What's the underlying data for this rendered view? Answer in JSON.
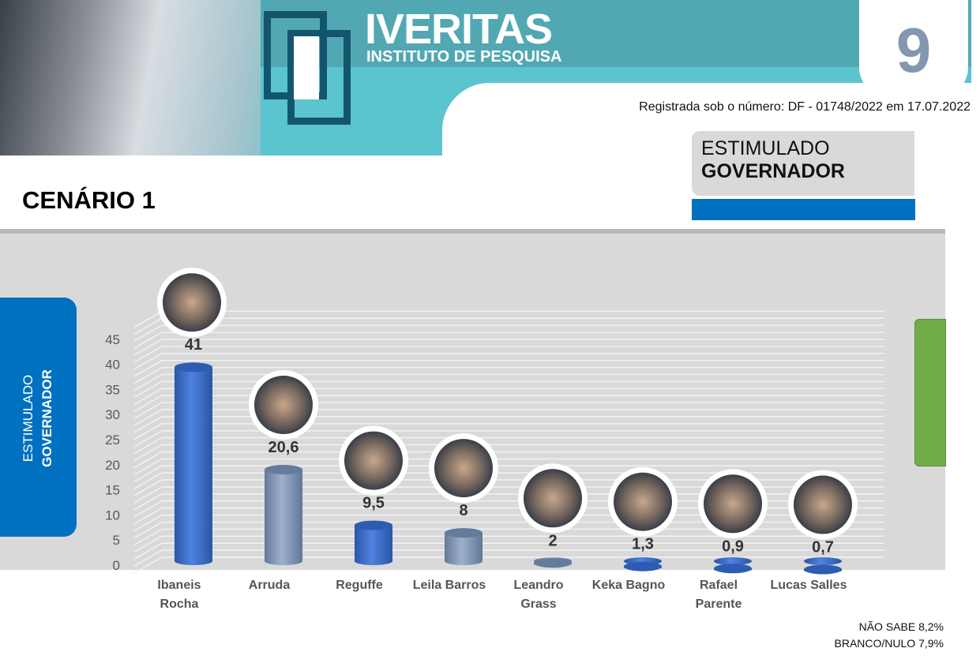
{
  "header": {
    "brand": "IVERITAS",
    "brand_sub": "INSTITUTO DE PESQUISA",
    "page_number": "9",
    "registration": "Registrada sob o número: DF - 01748/2022 em 17.07.2022"
  },
  "tag": {
    "line1": "ESTIMULADO",
    "line2": "GOVERNADOR"
  },
  "title": "CENÁRIO 1",
  "side_tab": {
    "line1": "ESTIMULADO",
    "line2": "GOVERNADOR"
  },
  "footer": {
    "nao_sabe": "NÃO SABE 8,2%",
    "branco_nulo": "BRANCO/NULO 7,9%"
  },
  "colors": {
    "blue": "#3d6fd1",
    "gray": "#7f95b6",
    "accent": "#0070c0",
    "green": "#70ad47"
  },
  "chart_data": {
    "type": "bar",
    "categories": [
      [
        "Ibaneis",
        "Rocha"
      ],
      [
        "Arruda"
      ],
      [
        "Reguffe"
      ],
      [
        "Leila Barros"
      ],
      [
        "Leandro",
        "Grass"
      ],
      [
        "Keka Bagno"
      ],
      [
        "Rafael",
        "Parente"
      ],
      [
        "Lucas Salles"
      ]
    ],
    "values": [
      41,
      20.6,
      9.5,
      8,
      2,
      1.3,
      0.9,
      0.7
    ],
    "value_labels": [
      "41",
      "20,6",
      "9,5",
      "8",
      "2",
      "1,3",
      "0,9",
      "0,7"
    ],
    "bar_colors": [
      "blue",
      "gray",
      "blue",
      "gray",
      "gray",
      "blue",
      "blue",
      "blue"
    ],
    "yticks": [
      "0",
      "5",
      "10",
      "15",
      "20",
      "25",
      "30",
      "35",
      "40",
      "45"
    ],
    "ylim": [
      0,
      45
    ],
    "title": "",
    "xlabel": "",
    "ylabel": ""
  }
}
